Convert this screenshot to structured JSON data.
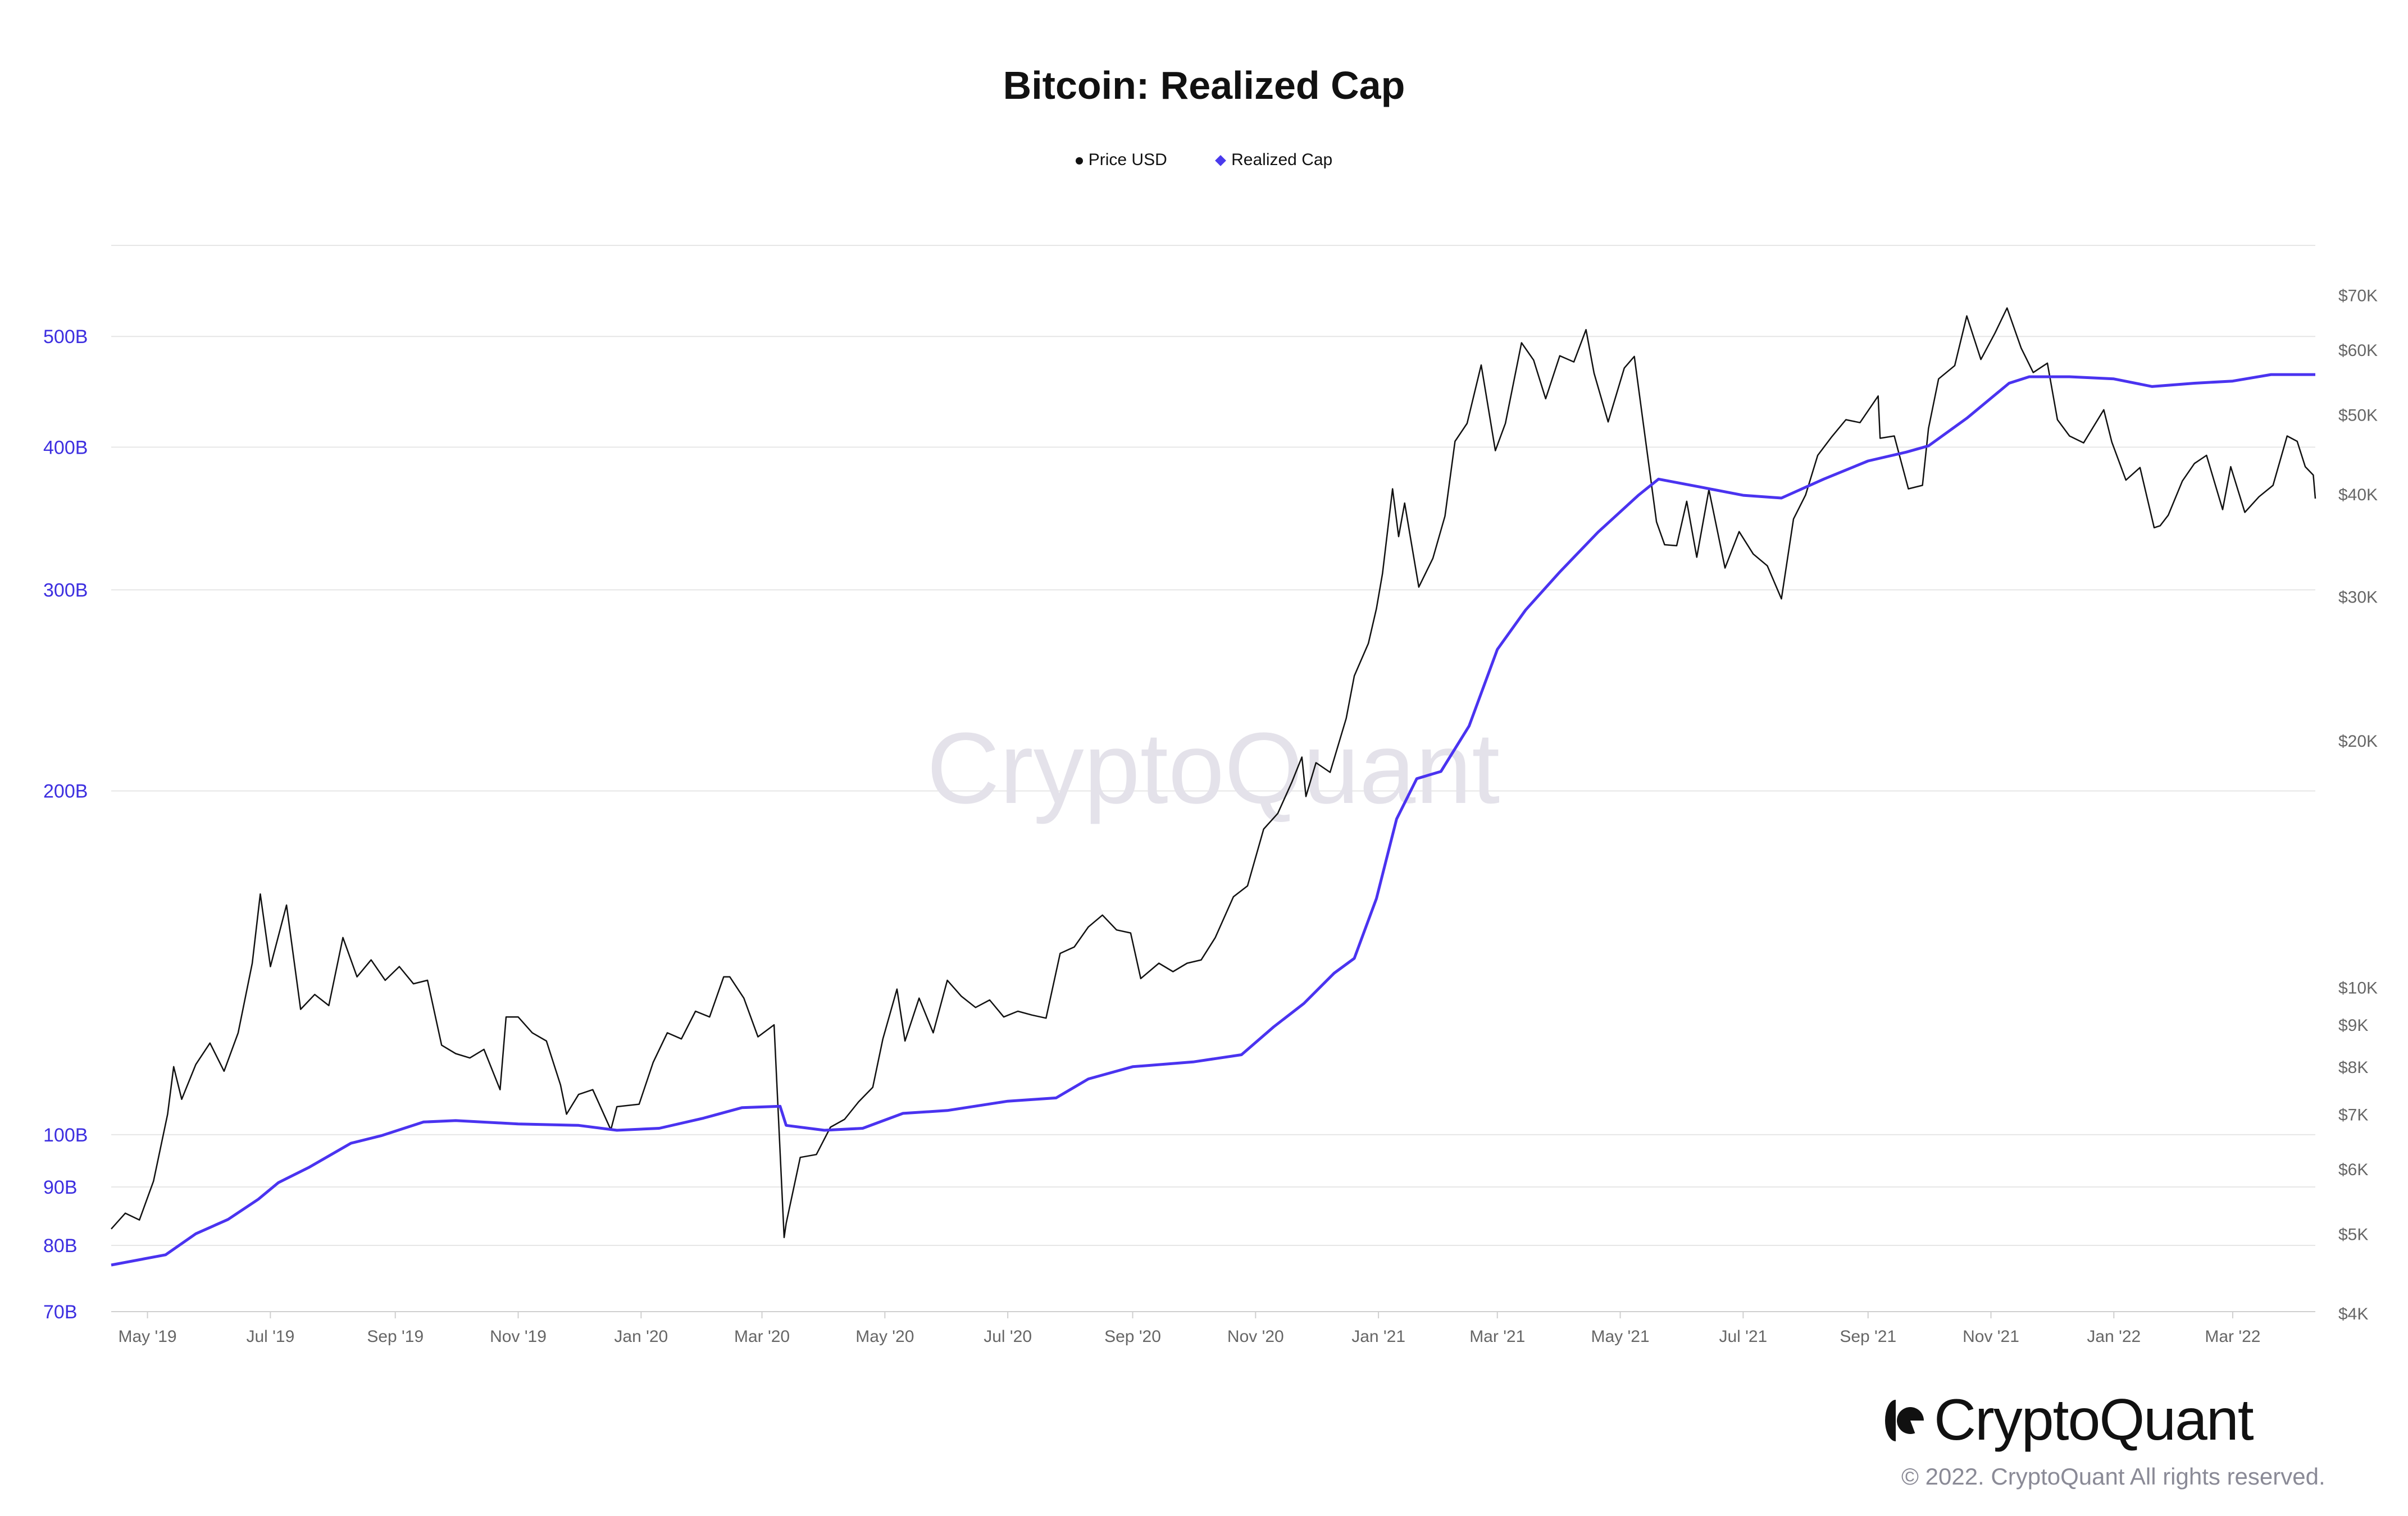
{
  "chart_data": {
    "type": "line",
    "title": "Bitcoin: Realized Cap",
    "legend": {
      "placement": "top-center",
      "entries": [
        "Price USD",
        "Realized Cap"
      ]
    },
    "grid": true,
    "x_range": [
      "2019-04-13",
      "2022-04-11"
    ],
    "x_ticks": [
      {
        "date": "2019-05-01",
        "label": "May '19"
      },
      {
        "date": "2019-07-01",
        "label": "Jul '19"
      },
      {
        "date": "2019-09-01",
        "label": "Sep '19"
      },
      {
        "date": "2019-11-01",
        "label": "Nov '19"
      },
      {
        "date": "2020-01-01",
        "label": "Jan '20"
      },
      {
        "date": "2020-03-01",
        "label": "Mar '20"
      },
      {
        "date": "2020-05-01",
        "label": "May '20"
      },
      {
        "date": "2020-07-01",
        "label": "Jul '20"
      },
      {
        "date": "2020-09-01",
        "label": "Sep '20"
      },
      {
        "date": "2020-11-01",
        "label": "Nov '20"
      },
      {
        "date": "2021-01-01",
        "label": "Jan '21"
      },
      {
        "date": "2021-03-01",
        "label": "Mar '21"
      },
      {
        "date": "2021-05-01",
        "label": "May '21"
      },
      {
        "date": "2021-07-01",
        "label": "Jul '21"
      },
      {
        "date": "2021-09-01",
        "label": "Sep '21"
      },
      {
        "date": "2021-11-01",
        "label": "Nov '21"
      },
      {
        "date": "2022-01-01",
        "label": "Jan '22"
      },
      {
        "date": "2022-03-01",
        "label": "Mar '22"
      }
    ],
    "y_left": {
      "scale": "log",
      "unit": "billion USD",
      "range": [
        70,
        600
      ],
      "color": "#3d2fe0",
      "ticks": [
        {
          "v": 70,
          "label": "70B"
        },
        {
          "v": 80,
          "label": "80B"
        },
        {
          "v": 90,
          "label": "90B"
        },
        {
          "v": 100,
          "label": "100B"
        },
        {
          "v": 200,
          "label": "200B"
        },
        {
          "v": 300,
          "label": "300B"
        },
        {
          "v": 400,
          "label": "400B"
        },
        {
          "v": 500,
          "label": "500B"
        }
      ]
    },
    "y_right": {
      "scale": "log",
      "unit": "USD",
      "range": [
        4000,
        70000
      ],
      "color": "#666666",
      "ticks": [
        {
          "v": 4000,
          "label": "$4K"
        },
        {
          "v": 5000,
          "label": "$5K"
        },
        {
          "v": 6000,
          "label": "$6K"
        },
        {
          "v": 7000,
          "label": "$7K"
        },
        {
          "v": 8000,
          "label": "$8K"
        },
        {
          "v": 9000,
          "label": "$9K"
        },
        {
          "v": 10000,
          "label": "$10K"
        },
        {
          "v": 20000,
          "label": "$20K"
        },
        {
          "v": 30000,
          "label": "$30K"
        },
        {
          "v": 40000,
          "label": "$40K"
        },
        {
          "v": 50000,
          "label": "$50K"
        },
        {
          "v": 60000,
          "label": "$60K"
        },
        {
          "v": 70000,
          "label": "$70K"
        }
      ]
    },
    "series": [
      {
        "name": "Price USD",
        "axis": "right",
        "color": "#111111",
        "points": [
          [
            "2019-04-13",
            5070
          ],
          [
            "2019-04-20",
            5300
          ],
          [
            "2019-04-27",
            5200
          ],
          [
            "2019-05-04",
            5800
          ],
          [
            "2019-05-11",
            7000
          ],
          [
            "2019-05-14",
            8000
          ],
          [
            "2019-05-18",
            7300
          ],
          [
            "2019-05-25",
            8050
          ],
          [
            "2019-06-01",
            8550
          ],
          [
            "2019-06-08",
            7900
          ],
          [
            "2019-06-15",
            8800
          ],
          [
            "2019-06-22",
            10700
          ],
          [
            "2019-06-26",
            13000
          ],
          [
            "2019-07-01",
            10600
          ],
          [
            "2019-07-09",
            12600
          ],
          [
            "2019-07-16",
            9400
          ],
          [
            "2019-07-23",
            9800
          ],
          [
            "2019-07-30",
            9500
          ],
          [
            "2019-08-06",
            11500
          ],
          [
            "2019-08-13",
            10300
          ],
          [
            "2019-08-20",
            10800
          ],
          [
            "2019-08-27",
            10200
          ],
          [
            "2019-09-03",
            10600
          ],
          [
            "2019-09-10",
            10100
          ],
          [
            "2019-09-17",
            10200
          ],
          [
            "2019-09-24",
            8500
          ],
          [
            "2019-10-01",
            8300
          ],
          [
            "2019-10-08",
            8200
          ],
          [
            "2019-10-15",
            8400
          ],
          [
            "2019-10-23",
            7500
          ],
          [
            "2019-10-26",
            9200
          ],
          [
            "2019-11-01",
            9200
          ],
          [
            "2019-11-08",
            8800
          ],
          [
            "2019-11-15",
            8600
          ],
          [
            "2019-11-22",
            7600
          ],
          [
            "2019-11-25",
            7000
          ],
          [
            "2019-12-01",
            7400
          ],
          [
            "2019-12-08",
            7500
          ],
          [
            "2019-12-17",
            6700
          ],
          [
            "2019-12-20",
            7150
          ],
          [
            "2019-12-31",
            7200
          ],
          [
            "2020-01-07",
            8100
          ],
          [
            "2020-01-14",
            8800
          ],
          [
            "2020-01-21",
            8650
          ],
          [
            "2020-01-28",
            9350
          ],
          [
            "2020-02-04",
            9200
          ],
          [
            "2020-02-11",
            10300
          ],
          [
            "2020-02-14",
            10300
          ],
          [
            "2020-02-21",
            9700
          ],
          [
            "2020-02-28",
            8700
          ],
          [
            "2020-03-07",
            9000
          ],
          [
            "2020-03-12",
            4950
          ],
          [
            "2020-03-13",
            5150
          ],
          [
            "2020-03-20",
            6200
          ],
          [
            "2020-03-28",
            6250
          ],
          [
            "2020-04-04",
            6750
          ],
          [
            "2020-04-11",
            6900
          ],
          [
            "2020-04-18",
            7250
          ],
          [
            "2020-04-25",
            7550
          ],
          [
            "2020-04-30",
            8650
          ],
          [
            "2020-05-07",
            9950
          ],
          [
            "2020-05-11",
            8600
          ],
          [
            "2020-05-18",
            9700
          ],
          [
            "2020-05-25",
            8800
          ],
          [
            "2020-06-01",
            10200
          ],
          [
            "2020-06-08",
            9750
          ],
          [
            "2020-06-15",
            9450
          ],
          [
            "2020-06-22",
            9650
          ],
          [
            "2020-06-29",
            9200
          ],
          [
            "2020-07-06",
            9350
          ],
          [
            "2020-07-13",
            9250
          ],
          [
            "2020-07-20",
            9170
          ],
          [
            "2020-07-27",
            11000
          ],
          [
            "2020-08-03",
            11200
          ],
          [
            "2020-08-10",
            11850
          ],
          [
            "2020-08-17",
            12250
          ],
          [
            "2020-08-24",
            11750
          ],
          [
            "2020-08-31",
            11650
          ],
          [
            "2020-09-05",
            10250
          ],
          [
            "2020-09-14",
            10700
          ],
          [
            "2020-09-21",
            10450
          ],
          [
            "2020-09-28",
            10700
          ],
          [
            "2020-10-05",
            10800
          ],
          [
            "2020-10-12",
            11500
          ],
          [
            "2020-10-21",
            12900
          ],
          [
            "2020-10-28",
            13300
          ],
          [
            "2020-11-05",
            15600
          ],
          [
            "2020-11-12",
            16300
          ],
          [
            "2020-11-19",
            17800
          ],
          [
            "2020-11-24",
            19100
          ],
          [
            "2020-11-26",
            17100
          ],
          [
            "2020-12-01",
            18800
          ],
          [
            "2020-12-08",
            18300
          ],
          [
            "2020-12-16",
            21300
          ],
          [
            "2020-12-20",
            24000
          ],
          [
            "2020-12-27",
            26300
          ],
          [
            "2020-12-31",
            29000
          ],
          [
            "2021-01-03",
            32000
          ],
          [
            "2021-01-08",
            40600
          ],
          [
            "2021-01-11",
            35500
          ],
          [
            "2021-01-14",
            39000
          ],
          [
            "2021-01-21",
            30800
          ],
          [
            "2021-01-28",
            33400
          ],
          [
            "2021-02-03",
            37600
          ],
          [
            "2021-02-08",
            46400
          ],
          [
            "2021-02-14",
            48800
          ],
          [
            "2021-02-21",
            57500
          ],
          [
            "2021-02-28",
            45200
          ],
          [
            "2021-03-05",
            48800
          ],
          [
            "2021-03-13",
            61200
          ],
          [
            "2021-03-19",
            58300
          ],
          [
            "2021-03-25",
            52300
          ],
          [
            "2021-04-01",
            59000
          ],
          [
            "2021-04-08",
            58000
          ],
          [
            "2021-04-14",
            63500
          ],
          [
            "2021-04-18",
            56200
          ],
          [
            "2021-04-25",
            49000
          ],
          [
            "2021-05-03",
            57000
          ],
          [
            "2021-05-08",
            58900
          ],
          [
            "2021-05-12",
            49700
          ],
          [
            "2021-05-19",
            37000
          ],
          [
            "2021-05-23",
            34700
          ],
          [
            "2021-05-29",
            34600
          ],
          [
            "2021-06-03",
            39200
          ],
          [
            "2021-06-08",
            33500
          ],
          [
            "2021-06-14",
            40500
          ],
          [
            "2021-06-22",
            32500
          ],
          [
            "2021-06-29",
            36000
          ],
          [
            "2021-07-06",
            33800
          ],
          [
            "2021-07-13",
            32700
          ],
          [
            "2021-07-20",
            29800
          ],
          [
            "2021-07-26",
            37300
          ],
          [
            "2021-08-01",
            39900
          ],
          [
            "2021-08-07",
            44600
          ],
          [
            "2021-08-14",
            47000
          ],
          [
            "2021-08-21",
            49300
          ],
          [
            "2021-08-28",
            48900
          ],
          [
            "2021-09-06",
            52700
          ],
          [
            "2021-09-07",
            46800
          ],
          [
            "2021-09-14",
            47100
          ],
          [
            "2021-09-21",
            40600
          ],
          [
            "2021-09-28",
            41000
          ],
          [
            "2021-10-01",
            48100
          ],
          [
            "2021-10-06",
            55300
          ],
          [
            "2021-10-14",
            57400
          ],
          [
            "2021-10-20",
            66000
          ],
          [
            "2021-10-27",
            58400
          ],
          [
            "2021-11-03",
            62900
          ],
          [
            "2021-11-09",
            67500
          ],
          [
            "2021-11-16",
            60300
          ],
          [
            "2021-11-22",
            56300
          ],
          [
            "2021-11-29",
            57800
          ],
          [
            "2021-12-04",
            49300
          ],
          [
            "2021-12-10",
            47100
          ],
          [
            "2021-12-17",
            46200
          ],
          [
            "2021-12-27",
            50700
          ],
          [
            "2021-12-31",
            46300
          ],
          [
            "2022-01-07",
            41600
          ],
          [
            "2022-01-14",
            43100
          ],
          [
            "2022-01-21",
            36400
          ],
          [
            "2022-01-24",
            36600
          ],
          [
            "2022-01-28",
            37700
          ],
          [
            "2022-02-04",
            41500
          ],
          [
            "2022-02-10",
            43600
          ],
          [
            "2022-02-16",
            44600
          ],
          [
            "2022-02-24",
            38300
          ],
          [
            "2022-02-28",
            43200
          ],
          [
            "2022-03-07",
            38000
          ],
          [
            "2022-03-14",
            39700
          ],
          [
            "2022-03-21",
            41000
          ],
          [
            "2022-03-28",
            47100
          ],
          [
            "2022-04-02",
            46400
          ],
          [
            "2022-04-06",
            43200
          ],
          [
            "2022-04-10",
            42200
          ],
          [
            "2022-04-11",
            39500
          ]
        ]
      },
      {
        "name": "Realized Cap",
        "axis": "left",
        "color": "#4a33f0",
        "points": [
          [
            "2019-04-13",
            76.9
          ],
          [
            "2019-05-10",
            78.5
          ],
          [
            "2019-05-25",
            81.9
          ],
          [
            "2019-06-10",
            84.3
          ],
          [
            "2019-06-25",
            87.8
          ],
          [
            "2019-07-05",
            90.8
          ],
          [
            "2019-07-20",
            93.6
          ],
          [
            "2019-08-10",
            98.3
          ],
          [
            "2019-08-25",
            99.8
          ],
          [
            "2019-09-15",
            102.6
          ],
          [
            "2019-10-01",
            102.9
          ],
          [
            "2019-11-01",
            102.2
          ],
          [
            "2019-12-01",
            101.9
          ],
          [
            "2019-12-20",
            100.9
          ],
          [
            "2020-01-10",
            101.3
          ],
          [
            "2020-02-01",
            103.4
          ],
          [
            "2020-02-20",
            105.6
          ],
          [
            "2020-03-10",
            105.9
          ],
          [
            "2020-03-13",
            101.9
          ],
          [
            "2020-04-01",
            100.9
          ],
          [
            "2020-04-20",
            101.3
          ],
          [
            "2020-05-10",
            104.4
          ],
          [
            "2020-06-01",
            105.0
          ],
          [
            "2020-07-01",
            107.0
          ],
          [
            "2020-07-25",
            107.7
          ],
          [
            "2020-08-10",
            111.9
          ],
          [
            "2020-09-01",
            114.7
          ],
          [
            "2020-10-01",
            115.8
          ],
          [
            "2020-10-25",
            117.5
          ],
          [
            "2020-11-10",
            124.3
          ],
          [
            "2020-11-25",
            130.3
          ],
          [
            "2020-12-10",
            138.5
          ],
          [
            "2020-12-20",
            142.7
          ],
          [
            "2020-12-31",
            161
          ],
          [
            "2021-01-10",
            189
          ],
          [
            "2021-01-20",
            205
          ],
          [
            "2021-02-01",
            208
          ],
          [
            "2021-02-15",
            228
          ],
          [
            "2021-03-01",
            266
          ],
          [
            "2021-03-15",
            288
          ],
          [
            "2021-04-01",
            311
          ],
          [
            "2021-04-20",
            337
          ],
          [
            "2021-05-10",
            363
          ],
          [
            "2021-05-20",
            375
          ],
          [
            "2021-06-10",
            369
          ],
          [
            "2021-07-01",
            363
          ],
          [
            "2021-07-20",
            361
          ],
          [
            "2021-08-10",
            375
          ],
          [
            "2021-09-01",
            389
          ],
          [
            "2021-09-20",
            396
          ],
          [
            "2021-10-01",
            401
          ],
          [
            "2021-10-20",
            424
          ],
          [
            "2021-11-10",
            455
          ],
          [
            "2021-11-20",
            461
          ],
          [
            "2021-12-10",
            461
          ],
          [
            "2022-01-01",
            459
          ],
          [
            "2022-01-20",
            452
          ],
          [
            "2022-02-10",
            455
          ],
          [
            "2022-03-01",
            457
          ],
          [
            "2022-03-20",
            463
          ],
          [
            "2022-04-11",
            463
          ]
        ]
      }
    ]
  },
  "watermark": "CryptoQuant",
  "brand": {
    "logo_text": "CryptoQuant",
    "copyright": "© 2022. CryptoQuant All rights reserved."
  }
}
